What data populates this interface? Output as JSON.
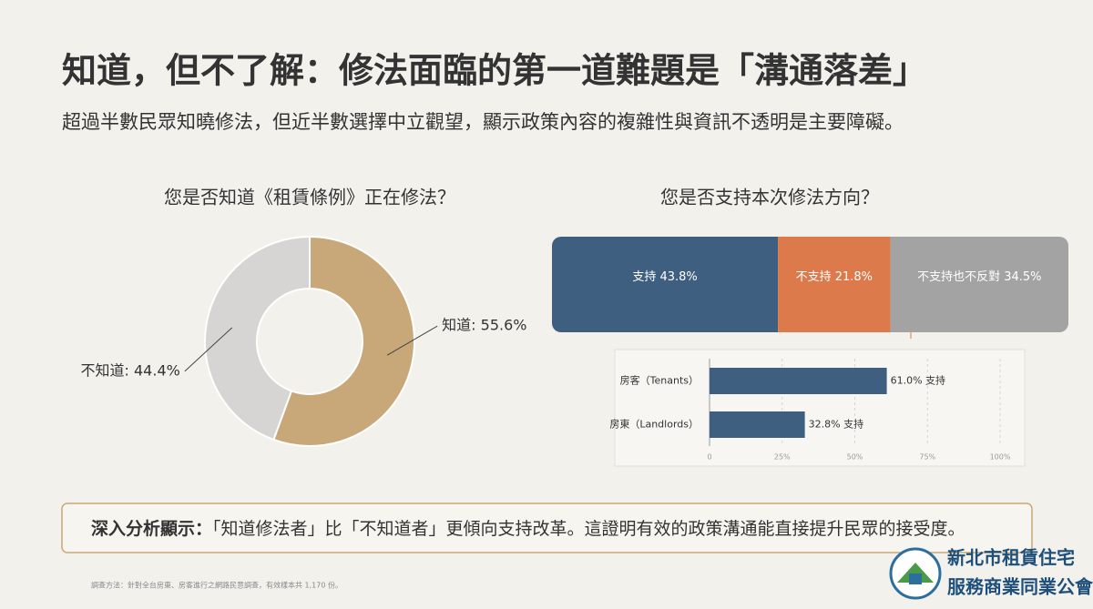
{
  "header": {
    "title": "知道，但不了解：修法面臨的第一道難題是「溝通落差」",
    "subtitle": "超過半數民眾知曉修法，但近半數選擇中立觀望，顯示政策內容的複雜性與資訊不透明是主要障礙。"
  },
  "chart_data": [
    {
      "type": "pie",
      "donut": true,
      "title": "您是否知道《租賃條例》正在修法？",
      "categories": [
        "知道",
        "不知道"
      ],
      "values": [
        55.6,
        44.4
      ],
      "value_labels": [
        "知道: 55.6%",
        "不知道: 44.4%"
      ],
      "colors": [
        "#c8a878",
        "#d6d5d3"
      ]
    },
    {
      "type": "stacked_bar",
      "title": "您是否支持本次修法方向？",
      "values": [
        43.8,
        21.8,
        34.5
      ],
      "value_labels": [
        "支持 43.8%",
        "不支持 21.8%",
        "不支持也不反對 34.5%"
      ],
      "colors": [
        "#3e5f80",
        "#dd7a4b",
        "#a3a3a3"
      ]
    },
    {
      "type": "barh",
      "categories": [
        "房客（Tenants）",
        "房東（Landlords）"
      ],
      "values": [
        61.0,
        32.8
      ],
      "value_labels": [
        "61.0% 支持",
        "32.8% 支持"
      ],
      "color": "#3e5f80",
      "xlim": [
        0,
        100
      ],
      "xticks": [
        0,
        {
          "value": 25,
          "label": "25%"
        },
        {
          "value": 50,
          "label": "50%"
        },
        {
          "value": 75,
          "label": "75%"
        },
        {
          "value": 100,
          "label": "100%"
        }
      ],
      "grid": true
    }
  ],
  "insight": {
    "label": "深入分析顯示：",
    "text": "「知道修法者」比「不知道者」更傾向支持改革。這證明有效的政策溝通能直接提升民眾的接受度。"
  },
  "footnote": "調查方法：針對全台房東、房客進行之網路民意調查，有效樣本共 1,170 份。",
  "logo": {
    "line1": "新北市租賃住宅",
    "line2": "服務商業同業公會"
  }
}
